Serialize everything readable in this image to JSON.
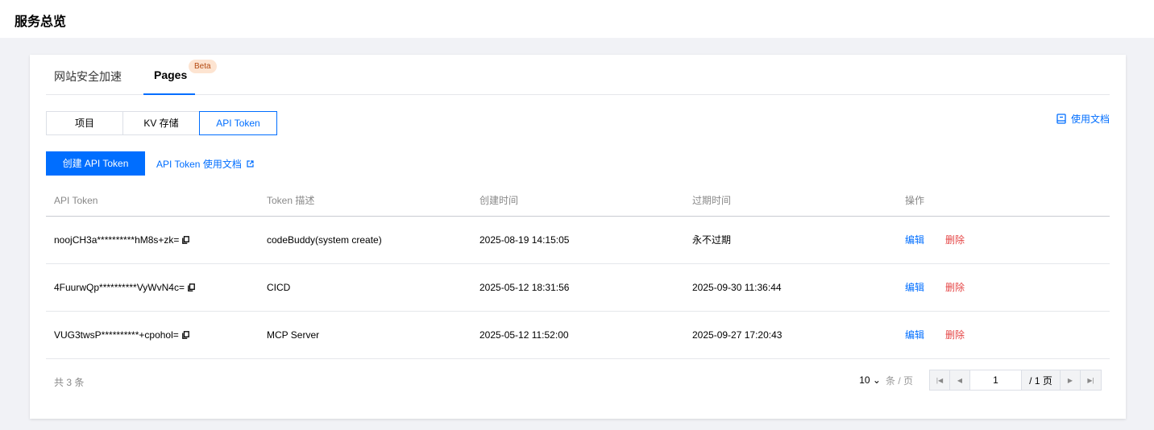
{
  "header": {
    "title": "服务总览"
  },
  "tabs": [
    {
      "label": "网站安全加速"
    },
    {
      "label": "Pages",
      "badge": "Beta"
    }
  ],
  "segments": [
    {
      "label": "项目"
    },
    {
      "label": "KV 存储"
    },
    {
      "label": "API Token",
      "active": true
    }
  ],
  "doc_link": "使用文档",
  "create_button": "创建 API Token",
  "api_doc_link": "API Token 使用文档",
  "table": {
    "columns": [
      "API Token",
      "Token 描述",
      "创建时间",
      "过期时间",
      "操作"
    ],
    "rows": [
      {
        "token": "noojCH3a**********hM8s+zk=",
        "desc": "codeBuddy(system create)",
        "created": "2025-08-19 14:15:05",
        "expires": "永不过期",
        "edit": "编辑",
        "delete": "删除"
      },
      {
        "token": "4FuurwQp**********VyWvN4c=",
        "desc": "CICD",
        "created": "2025-05-12 18:31:56",
        "expires": "2025-09-30 11:36:44",
        "edit": "编辑",
        "delete": "删除"
      },
      {
        "token": "VUG3twsP**********+cpohol=",
        "desc": "MCP Server",
        "created": "2025-05-12 11:52:00",
        "expires": "2025-09-27 17:20:43",
        "edit": "编辑",
        "delete": "删除"
      }
    ]
  },
  "footer": {
    "total": "共 3 条",
    "page_size": "10",
    "page_size_unit": "条 / 页",
    "current_page": "1",
    "total_pages": "/ 1 页"
  },
  "colors": {
    "accent": "#006eff",
    "danger": "#e54545"
  }
}
